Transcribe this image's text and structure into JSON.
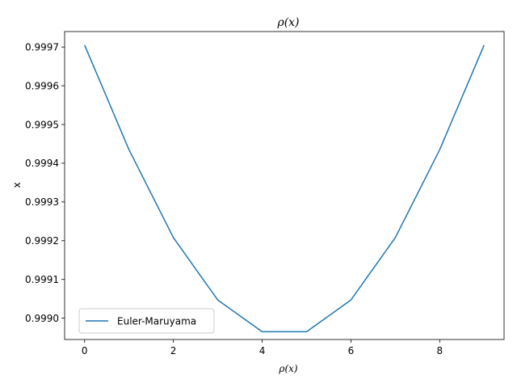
{
  "chart_data": {
    "type": "line",
    "title": "ρ(x)",
    "xlabel": "ρ(x)",
    "ylabel": "x",
    "xlim": [
      -0.45,
      9.45
    ],
    "ylim": [
      0.998945,
      0.99974
    ],
    "xticks": [
      0,
      2,
      4,
      6,
      8
    ],
    "yticks": [
      0.999,
      0.9991,
      0.9992,
      0.9993,
      0.9994,
      0.9995,
      0.9996,
      0.9997
    ],
    "yticks_labels": [
      "0.9990",
      "0.9991",
      "0.9992",
      "0.9993",
      "0.9994",
      "0.9995",
      "0.9996",
      "0.9997"
    ],
    "grid": false,
    "legend": "lower-left",
    "series": [
      {
        "name": "Euler-Maruyama",
        "color": "#1f77b4",
        "x": [
          0,
          1,
          2,
          3,
          4,
          5,
          6,
          7,
          8,
          9
        ],
        "y": [
          0.999705,
          0.999435,
          0.999208,
          0.999047,
          0.998965,
          0.998965,
          0.999047,
          0.999208,
          0.999435,
          0.999705
        ]
      }
    ]
  }
}
